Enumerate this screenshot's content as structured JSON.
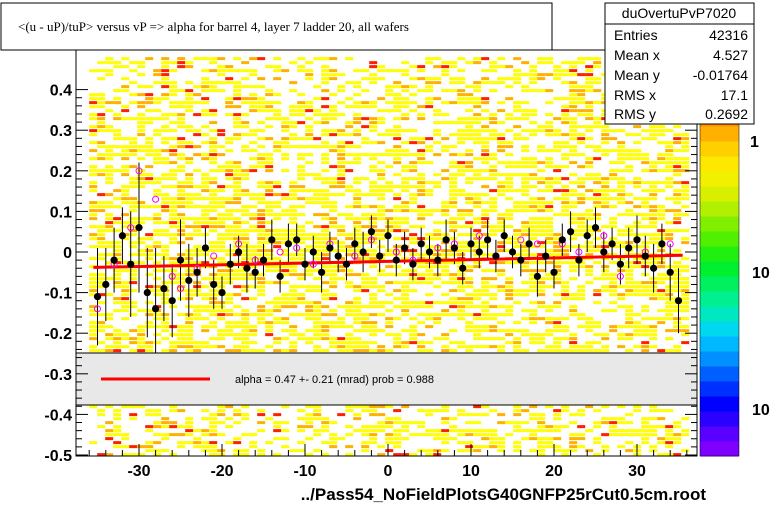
{
  "title": "<(u - uP)/tuP> versus   vP => alpha for barrel 4, layer 7 ladder 20, all wafers",
  "footer": "../Pass54_NoFieldPlotsG40GNFP25rCut0.5cm.root",
  "stats": {
    "name": "duOvertuPvP7020",
    "rows": [
      {
        "label": "Entries",
        "value": "42316"
      },
      {
        "label": "Mean x",
        "value": "4.527"
      },
      {
        "label": "Mean y",
        "value": "-0.01764"
      },
      {
        "label": "RMS x",
        "value": "17.1"
      },
      {
        "label": "RMS y",
        "value": "0.2692"
      }
    ]
  },
  "fit_legend": "alpha =    0.47 +-  0.21 (mrad) prob = 0.988",
  "palette_labels": [
    "1",
    "10",
    "10"
  ],
  "colors": {
    "fit_line": "#ff0000",
    "profile_points": "#000000",
    "secondary_points": "#ff00ff",
    "heat_low": "#ffff00",
    "heat_mid": "#ffb000",
    "heat_high": "#ff0000"
  },
  "chart_data": {
    "type": "scatter",
    "title": "<(u - uP)/tuP> versus   vP => alpha for barrel 4, layer 7 ladder 20, all wafers",
    "xlabel": "",
    "ylabel": "",
    "xlim": [
      -38,
      38
    ],
    "ylim": [
      -0.5,
      0.5
    ],
    "x_ticks": [
      -30,
      -20,
      -10,
      0,
      10,
      20,
      30
    ],
    "x_tick_labels": [
      "-30",
      "-20",
      "-10",
      "0",
      "10",
      "20",
      "30"
    ],
    "y_ticks": [
      -0.5,
      -0.4,
      -0.3,
      -0.2,
      -0.1,
      0,
      0.1,
      0.2,
      0.3,
      0.4
    ],
    "y_tick_labels": [
      "-0.5",
      "-0.4",
      "-0.3",
      "-0.2",
      "-0.1",
      "0",
      "0.1",
      "0.2",
      "0.3",
      "0.4"
    ],
    "grid": false,
    "fit_line": {
      "x": [
        -35.5,
        35.5
      ],
      "y": [
        -0.038,
        -0.008
      ]
    },
    "profile_series": {
      "name": "profile",
      "x": [
        -35,
        -34,
        -33,
        -32,
        -31,
        -30,
        -29,
        -28,
        -27,
        -26,
        -25,
        -24,
        -23,
        -22,
        -21,
        -20,
        -19,
        -18,
        -17,
        -16,
        -15,
        -14,
        -13,
        -12,
        -11,
        -10,
        -9,
        -8,
        -7,
        -6,
        -5,
        -4,
        -3,
        -2,
        -1,
        0,
        1,
        2,
        3,
        4,
        5,
        6,
        7,
        8,
        9,
        10,
        11,
        12,
        13,
        14,
        15,
        16,
        17,
        18,
        19,
        20,
        21,
        22,
        23,
        24,
        25,
        26,
        27,
        28,
        29,
        30,
        31,
        32,
        33,
        34,
        35
      ],
      "y": [
        -0.11,
        -0.08,
        -0.02,
        0.04,
        -0.03,
        0.06,
        -0.1,
        -0.14,
        -0.09,
        -0.12,
        -0.02,
        -0.07,
        -0.05,
        0.01,
        -0.08,
        -0.1,
        -0.03,
        0.0,
        -0.04,
        -0.05,
        -0.02,
        0.03,
        -0.06,
        0.02,
        0.03,
        -0.03,
        0.0,
        -0.05,
        0.01,
        -0.01,
        -0.03,
        0.02,
        0.0,
        0.05,
        -0.01,
        0.04,
        -0.02,
        0.01,
        -0.03,
        0.02,
        0.0,
        -0.02,
        0.03,
        0.01,
        -0.04,
        0.02,
        0.0,
        0.03,
        -0.01,
        0.04,
        0.0,
        -0.02,
        0.02,
        -0.06,
        -0.01,
        -0.05,
        0.03,
        0.05,
        -0.02,
        0.04,
        0.06,
        0.0,
        0.02,
        -0.03,
        0.01,
        0.03,
        -0.01,
        -0.04,
        0.02,
        -0.05,
        -0.12
      ]
    },
    "secondary_series": {
      "name": "",
      "x": [
        -35,
        -33,
        -31,
        -30,
        -28,
        -26,
        -25,
        -23,
        -21,
        -18,
        -16,
        -13,
        -11,
        -9,
        -7,
        -4,
        -2,
        1,
        3,
        6,
        8,
        11,
        13,
        16,
        18,
        21,
        23,
        26,
        28,
        31,
        34
      ],
      "y": [
        -0.14,
        -0.03,
        0.06,
        0.2,
        0.13,
        -0.06,
        -0.09,
        -0.04,
        -0.01,
        0.02,
        -0.02,
        0.0,
        0.01,
        -0.03,
        0.02,
        -0.01,
        0.03,
        0.0,
        -0.02,
        0.01,
        0.02,
        0.04,
        -0.01,
        0.03,
        0.02,
        0.02,
        0.0,
        0.04,
        -0.06,
        0.0,
        0.02
      ]
    },
    "error_half_width": [
      0.12,
      0.09,
      0.08,
      0.07,
      0.13,
      0.16,
      0.11,
      0.15,
      0.08,
      0.09,
      0.1,
      0.09,
      0.06,
      0.05,
      0.06,
      0.04,
      0.05,
      0.04,
      0.06,
      0.04,
      0.04,
      0.05,
      0.04,
      0.05,
      0.04,
      0.04,
      0.04,
      0.05,
      0.04,
      0.04,
      0.04,
      0.04,
      0.05,
      0.04,
      0.04,
      0.04,
      0.04,
      0.04,
      0.04,
      0.04,
      0.04,
      0.04,
      0.05,
      0.04,
      0.04,
      0.04,
      0.04,
      0.05,
      0.04,
      0.04,
      0.04,
      0.04,
      0.04,
      0.05,
      0.04,
      0.04,
      0.04,
      0.05,
      0.04,
      0.04,
      0.05,
      0.05,
      0.04,
      0.05,
      0.05,
      0.06,
      0.05,
      0.06,
      0.05,
      0.07,
      0.08
    ],
    "heatmap": {
      "x_range": [
        -36,
        36
      ],
      "y_range": [
        -0.5,
        0.48
      ],
      "description_of_levels": [
        "low",
        "mid",
        "high"
      ]
    }
  }
}
